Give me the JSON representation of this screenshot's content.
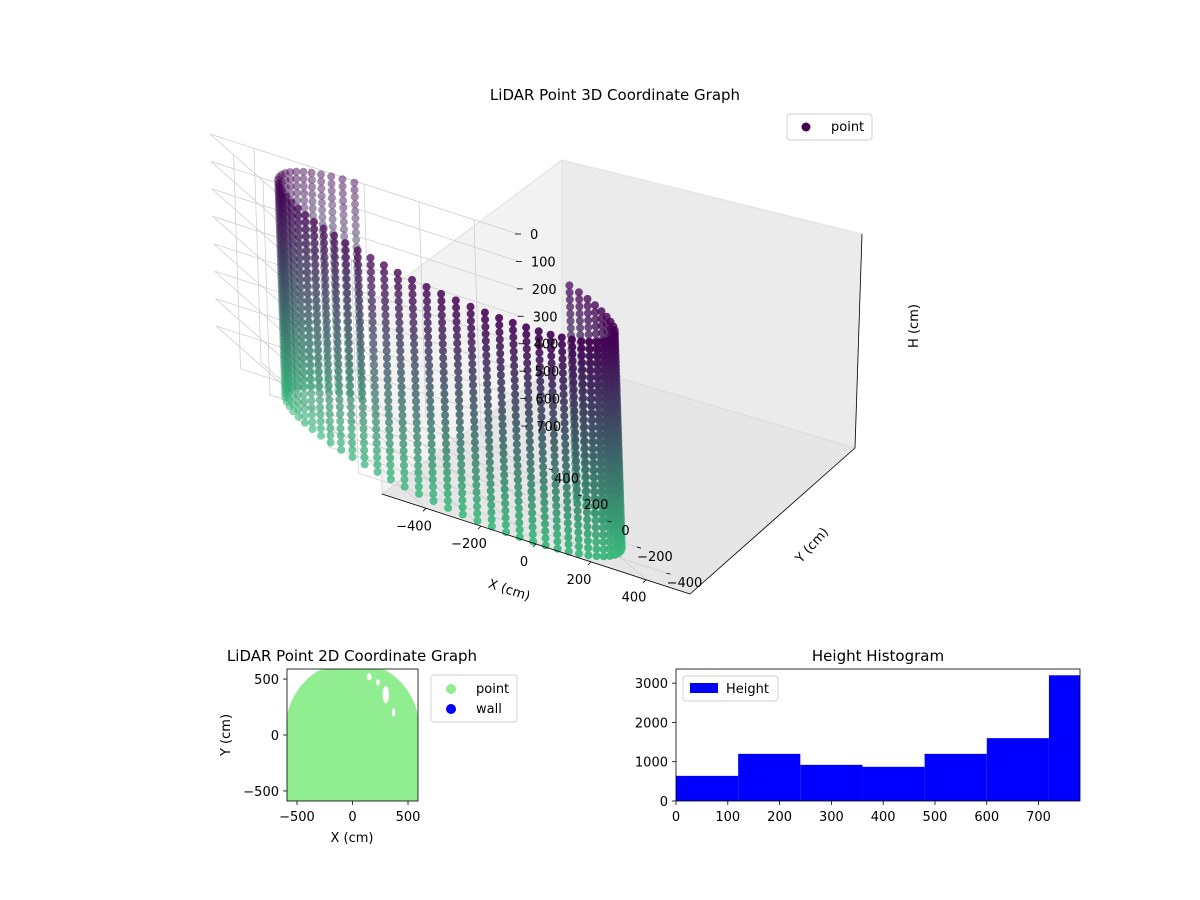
{
  "colors": {
    "point_dark": "#440154",
    "point_light": "#35b779",
    "map_point": "#90ee90",
    "map_wall": "#0000ff",
    "histogram": "#0000ff",
    "pane": "#f2f2f2",
    "grid": "#cfcfcf"
  },
  "chart_data": [
    {
      "type": "scatter",
      "projection": "3d",
      "title": "LiDAR Point 3D Coordinate Graph",
      "xlabel": "X (cm)",
      "ylabel": "Y (cm)",
      "zlabel": "H (cm)",
      "x_ticks": [
        -400,
        -200,
        0,
        200,
        400
      ],
      "x_tick_labels": [
        "−400",
        "−200",
        "0",
        "200",
        "400"
      ],
      "y_ticks": [
        -400,
        -200,
        0,
        200,
        400
      ],
      "y_tick_labels": [
        "−400",
        "−200",
        "0",
        "200",
        "400"
      ],
      "z_ticks": [
        0,
        100,
        200,
        300,
        400,
        500,
        600,
        700
      ],
      "z_tick_labels": [
        "0",
        "100",
        "200",
        "300",
        "400",
        "500",
        "600",
        "700"
      ],
      "xlim": [
        -560,
        560
      ],
      "ylim": [
        -560,
        560
      ],
      "zlim": [
        780,
        0
      ],
      "z_inverted": true,
      "legend": [
        "point"
      ],
      "legend_position": "top-right",
      "series": [
        {
          "name": "point",
          "shape": "cylindrical wall of points, colored by height (viridis)",
          "radius_cm": 540,
          "height_range": [
            0,
            780
          ],
          "open_sector_deg": [
            15,
            95
          ]
        }
      ],
      "grid": true
    },
    {
      "type": "scatter",
      "title": "LiDAR Point 2D Coordinate Graph",
      "xlabel": "X (cm)",
      "ylabel": "Y (cm)",
      "x_ticks": [
        -500,
        0,
        500
      ],
      "x_tick_labels": [
        "−500",
        "0",
        "500"
      ],
      "y_ticks": [
        -500,
        0,
        500
      ],
      "y_tick_labels": [
        "−500",
        "0",
        "500"
      ],
      "xlim": [
        -590,
        590
      ],
      "ylim": [
        -590,
        590
      ],
      "legend": [
        "point",
        "wall"
      ],
      "legend_position": "outside right",
      "series": [
        {
          "name": "point",
          "shape": "filled region with rounded top"
        },
        {
          "name": "wall",
          "points": 0
        }
      ]
    },
    {
      "type": "bar",
      "subtype": "histogram",
      "title": "Height Histogram",
      "legend": [
        "Height"
      ],
      "legend_position": "top-left",
      "bin_edges": [
        0,
        120,
        240,
        360,
        480,
        600,
        720,
        780
      ],
      "values": [
        640,
        1200,
        920,
        870,
        1200,
        1600,
        3200
      ],
      "x_ticks": [
        0,
        100,
        200,
        300,
        400,
        500,
        600,
        700
      ],
      "x_tick_labels": [
        "0",
        "100",
        "200",
        "300",
        "400",
        "500",
        "600",
        "700"
      ],
      "y_ticks": [
        0,
        1000,
        2000,
        3000
      ],
      "y_tick_labels": [
        "0",
        "1000",
        "2000",
        "3000"
      ],
      "xlim": [
        0,
        780
      ],
      "ylim": [
        0,
        3360
      ]
    }
  ]
}
